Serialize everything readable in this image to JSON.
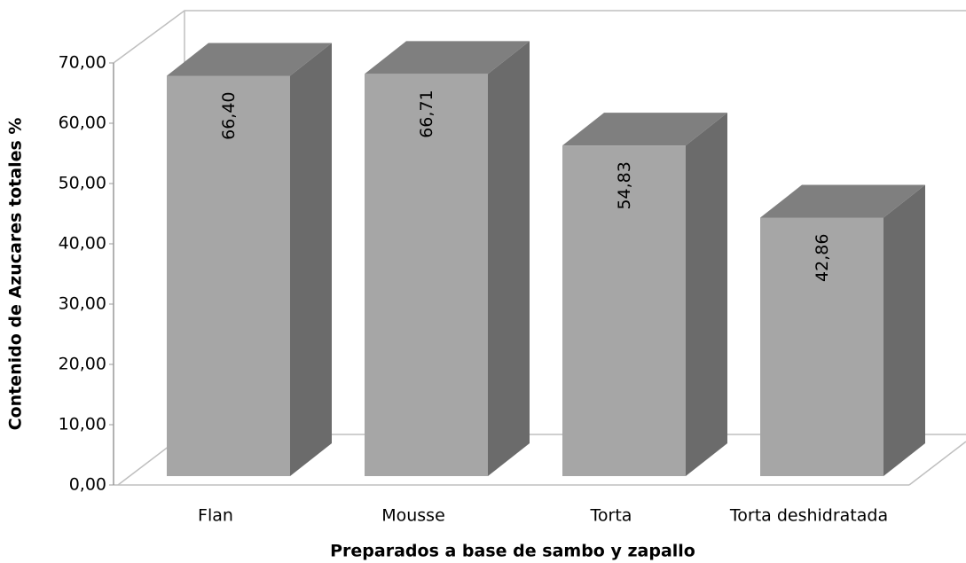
{
  "chart_data": {
    "type": "bar3d",
    "categories": [
      "Flan",
      "Mousse",
      "Torta",
      "Torta deshidratada"
    ],
    "values": [
      66.4,
      66.71,
      54.83,
      42.86
    ],
    "value_labels": [
      "66,40",
      "66,71",
      "54,83",
      "42,86"
    ],
    "x_label": "Preparados a base de sambo y zapallo",
    "y_label": "Contenido de Azucares totales %",
    "color": "#a6a6a6",
    "ylim": [
      0,
      70
    ],
    "yticks": [
      {
        "value": 0,
        "label": "0,00"
      },
      {
        "value": 10,
        "label": "10,00"
      },
      {
        "value": 20,
        "label": "20,00"
      },
      {
        "value": 30,
        "label": "30,00"
      },
      {
        "value": 40,
        "label": "40,00"
      },
      {
        "value": 50,
        "label": "50,00"
      },
      {
        "value": 60,
        "label": "60,00"
      },
      {
        "value": 70,
        "label": "70,00"
      }
    ],
    "grid": false
  }
}
